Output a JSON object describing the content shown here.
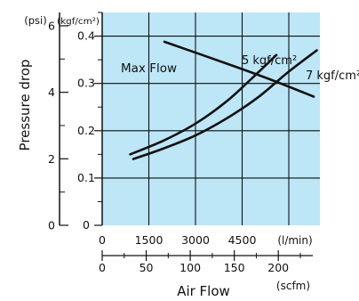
{
  "chart_data": {
    "type": "line",
    "ylabel": "Pressure drop",
    "xlabel": "Air Flow",
    "y_units": {
      "psi": "(psi)",
      "kgf": "(kgf/cm²)"
    },
    "x_units": {
      "lmin": "(l/min)",
      "scfm": "(scfm)"
    },
    "ylim": [
      0,
      0.45
    ],
    "xlim": [
      0,
      7000
    ],
    "y_kgf_ticks": [
      "0",
      "0.1",
      "0.2",
      "0.3",
      "0.4"
    ],
    "y_psi_ticks": [
      "0",
      "2",
      "4",
      "6"
    ],
    "x_lmin_ticks": [
      "0",
      "1500",
      "3000",
      "4500"
    ],
    "x_scfm_ticks": [
      "0",
      "50",
      "100",
      "150",
      "200"
    ],
    "background_color": "#bde6f6",
    "series": [
      {
        "name": "5 kgf/cm²",
        "x": [
          900,
          2000,
          3000,
          4000,
          4800,
          5600
        ],
        "y": [
          0.15,
          0.18,
          0.215,
          0.262,
          0.31,
          0.36
        ]
      },
      {
        "name": "7 kgf/cm²",
        "x": [
          1000,
          2000,
          3000,
          4000,
          5000,
          6000,
          6900
        ],
        "y": [
          0.14,
          0.163,
          0.19,
          0.226,
          0.27,
          0.325,
          0.37
        ]
      },
      {
        "name": "Max Flow",
        "x": [
          2000,
          4000,
          5500,
          6800
        ],
        "y": [
          0.388,
          0.342,
          0.306,
          0.272
        ]
      }
    ]
  }
}
